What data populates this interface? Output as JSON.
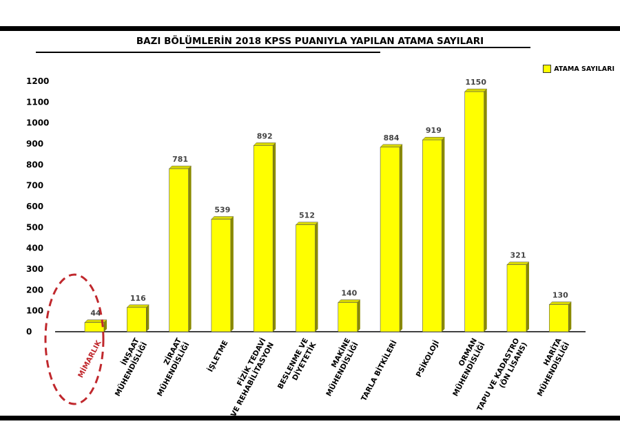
{
  "chart_data": {
    "type": "bar",
    "title": "BAZI BÖLÜMLERİN 2018 KPSS PUANIYLA YAPILAN ATAMA SAYILARI",
    "xlabel": "",
    "ylabel": "",
    "ylim": [
      0,
      1200
    ],
    "yticks": [
      0,
      100,
      200,
      300,
      400,
      500,
      600,
      700,
      800,
      900,
      1000,
      1100,
      1200
    ],
    "grid": false,
    "legend_position": "top-right",
    "bar_color": "#ffff00",
    "highlight_color": "#c0282d",
    "categories": [
      [
        "MİMARLIK"
      ],
      [
        "İNŞAAT",
        "MÜHENDİSLİĞİ"
      ],
      [
        "ZİRAAT",
        "MÜHENDİSLİĞİ"
      ],
      [
        "İŞLETME"
      ],
      [
        "FİZİK TEDAVİ",
        "VE REHABİLİTASYON"
      ],
      [
        "BESLENME VE",
        "DİYETETİK"
      ],
      [
        "MAKİNE",
        "MÜHENDİSLİĞİ"
      ],
      [
        "TARLA BİTKİLERİ"
      ],
      [
        "PSİKOLOJİ"
      ],
      [
        "ORMAN",
        "MÜHENDİSLİĞİ"
      ],
      [
        "TAPU VE KADASTRO",
        "(ÖN LİSANS)"
      ],
      [
        "HARİTA",
        "MÜHENDİSLİĞİ"
      ]
    ],
    "series": [
      {
        "name": "ATAMA SAYILARI",
        "values": [
          44,
          116,
          781,
          539,
          892,
          512,
          140,
          884,
          919,
          1150,
          321,
          130
        ]
      }
    ],
    "highlighted_category": "MİMARLIK"
  }
}
